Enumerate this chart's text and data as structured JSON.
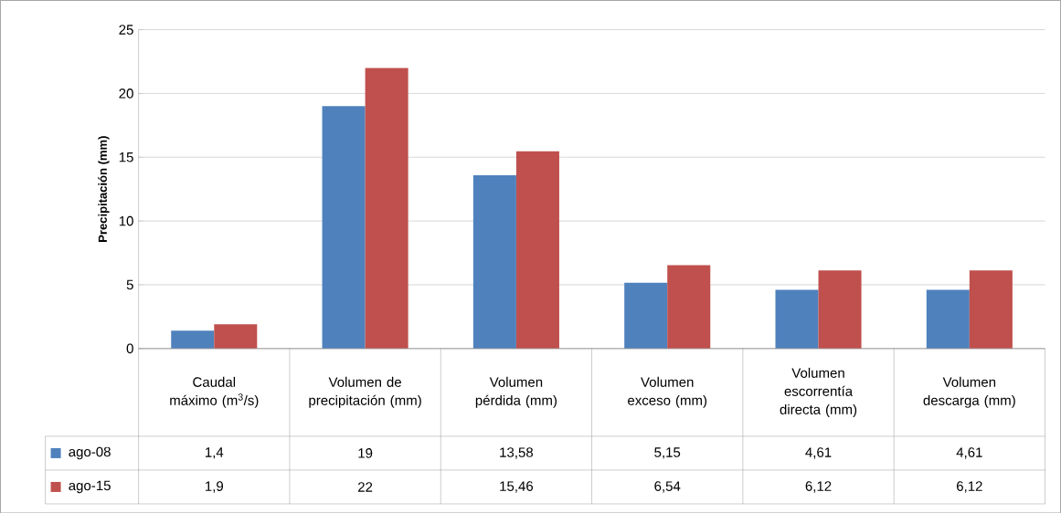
{
  "chart_data": {
    "type": "bar",
    "ylabel": "Precipitación  (mm)",
    "categories": [
      "Caudal máximo (m$^{3}$/s)",
      "Volumen de precipitación (mm)",
      "Volumen pérdida (mm)",
      "Volumen exceso (mm)",
      "Volumen escorrentía directa (mm)",
      "Volumen descarga (mm)"
    ],
    "series": [
      {
        "name": "ago-08",
        "color": "#4f81bd",
        "values": [
          1.4,
          19,
          13.58,
          5.15,
          4.61,
          4.61
        ],
        "value_labels": [
          "1,4",
          "19",
          "13,58",
          "5,15",
          "4,61",
          "4,61"
        ]
      },
      {
        "name": "ago-15",
        "color": "#c0504d",
        "values": [
          1.9,
          22,
          15.46,
          6.54,
          6.12,
          6.12
        ],
        "value_labels": [
          "1,9",
          "22",
          "15,46",
          "6,54",
          "6,12",
          "6,12"
        ]
      }
    ],
    "ylim": [
      0,
      25
    ],
    "yticks": [
      0,
      5,
      10,
      15,
      20,
      25
    ],
    "grid": "y",
    "legend": "bottom left"
  }
}
